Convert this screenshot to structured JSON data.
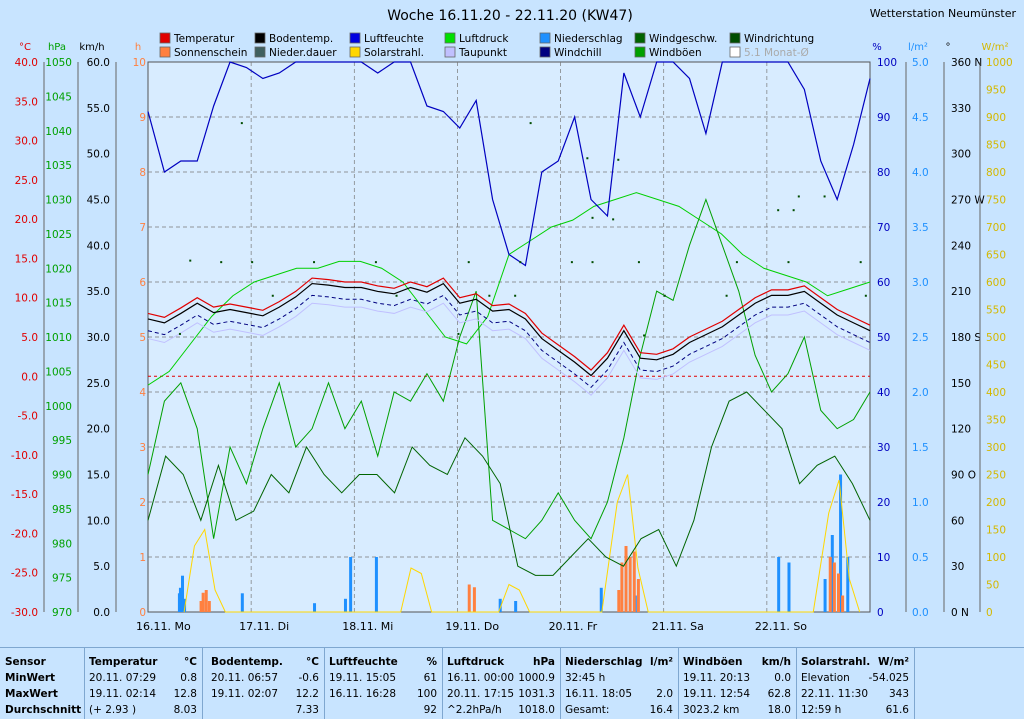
{
  "station": "Wetterstation Neumünster",
  "chart_data": {
    "type": "line",
    "title": "Woche 16.11.20 - 22.11.20 (KW47)",
    "days": [
      "16.11. Mo",
      "17.11. Di",
      "18.11. Mi",
      "19.11. Do",
      "20.11. Fr",
      "21.11. Sa",
      "22.11. So"
    ],
    "legend": [
      {
        "name": "Temperatur",
        "color": "#e00000"
      },
      {
        "name": "Bodentemp.",
        "color": "#000000"
      },
      {
        "name": "Luftfeuchte",
        "color": "#0000e0"
      },
      {
        "name": "Luftdruck",
        "color": "#00e000"
      },
      {
        "name": "Niederschlag",
        "color": "#1e90ff"
      },
      {
        "name": "Windgeschw.",
        "color": "#006400"
      },
      {
        "name": "Windrichtung",
        "color": "#004d00"
      },
      {
        "name": "Sonnenschein",
        "color": "#ff8040"
      },
      {
        "name": "Nieder.dauer",
        "color": "#406060"
      },
      {
        "name": "Solarstrahl.",
        "color": "#ffd700"
      },
      {
        "name": "Taupunkt",
        "color": "#c0c0ff"
      },
      {
        "name": "Windchill",
        "color": "#000080"
      },
      {
        "name": "Windböen",
        "color": "#00a000"
      },
      {
        "name": "5.1 Monat-Ø",
        "color": "#ffffff"
      }
    ],
    "axes": {
      "temp": {
        "unit": "°C",
        "ticks": [
          "40.0",
          "35.0",
          "30.0",
          "25.0",
          "20.0",
          "15.0",
          "10.0",
          "5.0",
          "0.0",
          "-5.0",
          "-10.0",
          "-15.0",
          "-20.0",
          "-25.0",
          "-30.0"
        ],
        "color": "#e00000"
      },
      "pressure": {
        "unit": "hPa",
        "ticks": [
          "1050",
          "1045",
          "1040",
          "1035",
          "1030",
          "1025",
          "1020",
          "1015",
          "1010",
          "1005",
          "1000",
          "995",
          "990",
          "985",
          "980",
          "975",
          "970"
        ],
        "color": "#00a000"
      },
      "wind": {
        "unit": "km/h",
        "ticks": [
          "60.0",
          "55.0",
          "50.0",
          "45.0",
          "40.0",
          "35.0",
          "30.0",
          "25.0",
          "20.0",
          "15.0",
          "10.0",
          "5.0",
          "0.0"
        ],
        "color": "#000000"
      },
      "sun": {
        "unit": "h",
        "ticks": [
          "10",
          "9",
          "8",
          "7",
          "6",
          "5",
          "4",
          "3",
          "2",
          "1",
          "0"
        ],
        "color": "#ff8040"
      },
      "humidity": {
        "unit": "%",
        "ticks": [
          "100",
          "90",
          "80",
          "70",
          "60",
          "50",
          "40",
          "30",
          "20",
          "10",
          "0"
        ],
        "color": "#0000c0"
      },
      "rain": {
        "unit": "l/m²",
        "ticks": [
          "5.0",
          "4.5",
          "4.0",
          "3.5",
          "3.0",
          "2.5",
          "2.0",
          "1.5",
          "1.0",
          "0.5",
          "0.0"
        ],
        "color": "#1e90ff"
      },
      "dir": {
        "unit": "°",
        "ticks": [
          "360 N",
          "330",
          "300",
          "270 W",
          "240",
          "210",
          "180 S",
          "150",
          "120",
          "90 O",
          "60",
          "30",
          "0 N"
        ],
        "color": "#000000"
      },
      "solar": {
        "unit": "W/m²",
        "ticks": [
          "1000",
          "950",
          "900",
          "850",
          "800",
          "750",
          "700",
          "650",
          "600",
          "550",
          "500",
          "450",
          "400",
          "350",
          "300",
          "250",
          "200",
          "150",
          "100",
          "50",
          "0"
        ],
        "color": "#d4b800"
      }
    },
    "series": {
      "temperature": [
        8.0,
        7.5,
        8.7,
        10.0,
        8.8,
        9.2,
        8.8,
        8.4,
        9.5,
        10.8,
        12.5,
        12.3,
        12.0,
        12.0,
        11.5,
        11.2,
        12.0,
        11.4,
        12.5,
        10.0,
        10.5,
        9.0,
        9.2,
        8.0,
        5.5,
        4.0,
        2.5,
        0.8,
        3.0,
        6.5,
        3.0,
        2.8,
        3.5,
        5.0,
        6.0,
        7.0,
        8.5,
        10.0,
        11.0,
        11.0,
        11.5,
        10.0,
        8.5,
        7.5,
        6.5
      ],
      "humidity": [
        91,
        80,
        82,
        82,
        92,
        100,
        99,
        97,
        98,
        100,
        100,
        100,
        100,
        100,
        98,
        100,
        100,
        92,
        91,
        88,
        93,
        75,
        65,
        63,
        80,
        82,
        90,
        75,
        72,
        98,
        90,
        100,
        100,
        97,
        87,
        100,
        100,
        100,
        100,
        100,
        95,
        82,
        75,
        85,
        97
      ],
      "pressure": [
        1003,
        1005,
        1009,
        1013,
        1016,
        1018,
        1019,
        1020,
        1020,
        1021,
        1021,
        1020,
        1018,
        1014,
        1010,
        1009,
        1013,
        1022,
        1024,
        1026,
        1027,
        1029,
        1030,
        1031,
        1030,
        1029,
        1027,
        1025,
        1022,
        1020,
        1019,
        1018,
        1016,
        1017,
        1018
      ],
      "windspeed": [
        10,
        17,
        15,
        10,
        16,
        10,
        11,
        15,
        13,
        18,
        15,
        13,
        15,
        15,
        13,
        18,
        16,
        15,
        19,
        17,
        14,
        5,
        4,
        4,
        6,
        8,
        6,
        5,
        8,
        9,
        5,
        10,
        18,
        23,
        24,
        22,
        20,
        14,
        16,
        17,
        14,
        10
      ],
      "windgust": [
        15,
        23,
        25,
        20,
        8,
        18,
        14,
        20,
        25,
        18,
        20,
        25,
        20,
        23,
        17,
        24,
        23,
        26,
        23,
        30,
        35,
        10,
        9,
        8,
        10,
        13,
        10,
        8,
        12,
        19,
        28,
        35,
        34,
        40,
        45,
        40,
        35,
        28,
        24,
        26,
        30,
        22,
        20,
        21,
        24
      ],
      "rain_bars": [
        [
          0.32,
          0.33
        ],
        [
          0.29,
          0.17
        ],
        [
          0.3,
          0.22
        ],
        [
          0.32,
          0.22
        ],
        [
          0.34,
          0.12
        ],
        [
          0.9,
          0.17
        ],
        [
          1.6,
          0.08
        ],
        [
          1.95,
          0.5
        ],
        [
          1.9,
          0.12
        ],
        [
          2.2,
          0.5
        ],
        [
          3.4,
          0.12
        ],
        [
          3.55,
          0.1
        ],
        [
          4.38,
          0.22
        ],
        [
          4.71,
          0.15
        ],
        [
          6.1,
          0.5
        ],
        [
          6.2,
          0.45
        ],
        [
          6.55,
          0.3
        ],
        [
          6.62,
          0.7
        ],
        [
          6.7,
          1.25
        ],
        [
          6.77,
          0.5
        ]
      ],
      "sun_bars": [
        [
          0.5,
          0.2
        ],
        [
          0.52,
          0.35
        ],
        [
          0.55,
          0.4
        ],
        [
          0.58,
          0.2
        ],
        [
          3.1,
          0.5
        ],
        [
          3.15,
          0.45
        ],
        [
          4.55,
          0.4
        ],
        [
          4.58,
          0.9
        ],
        [
          4.62,
          1.2
        ],
        [
          4.66,
          1.0
        ],
        [
          4.7,
          1.1
        ],
        [
          4.74,
          0.6
        ],
        [
          6.6,
          1.0
        ],
        [
          6.64,
          0.9
        ],
        [
          6.68,
          0.7
        ],
        [
          6.72,
          0.3
        ]
      ],
      "solar": [
        [
          0.35,
          0
        ],
        [
          0.45,
          120
        ],
        [
          0.55,
          150
        ],
        [
          0.65,
          40
        ],
        [
          0.75,
          0
        ],
        [
          2.45,
          0
        ],
        [
          2.55,
          80
        ],
        [
          2.65,
          70
        ],
        [
          2.75,
          0
        ],
        [
          3.4,
          0
        ],
        [
          3.5,
          50
        ],
        [
          3.6,
          40
        ],
        [
          3.7,
          0
        ],
        [
          4.4,
          0
        ],
        [
          4.55,
          200
        ],
        [
          4.65,
          250
        ],
        [
          4.75,
          80
        ],
        [
          4.85,
          0
        ],
        [
          6.45,
          0
        ],
        [
          6.6,
          180
        ],
        [
          6.7,
          240
        ],
        [
          6.8,
          60
        ],
        [
          6.9,
          0
        ]
      ],
      "winddir_dots": [
        [
          0.4,
          230
        ],
        [
          0.7,
          229
        ],
        [
          1.0,
          229
        ],
        [
          1.6,
          229
        ],
        [
          2.2,
          229
        ],
        [
          3.1,
          229
        ],
        [
          3.6,
          229
        ],
        [
          4.1,
          229
        ],
        [
          4.3,
          229
        ],
        [
          4.75,
          229
        ],
        [
          5.7,
          229
        ],
        [
          6.2,
          229
        ],
        [
          6.9,
          229
        ],
        [
          1.2,
          207
        ],
        [
          2.4,
          207
        ],
        [
          3.3,
          207
        ],
        [
          3.55,
          207
        ],
        [
          5.0,
          207
        ],
        [
          5.6,
          207
        ],
        [
          6.95,
          207
        ],
        [
          0.3,
          182
        ],
        [
          3.0,
          182
        ],
        [
          4.8,
          181
        ],
        [
          0.9,
          320
        ],
        [
          3.7,
          320
        ],
        [
          4.25,
          297
        ],
        [
          4.55,
          296
        ],
        [
          6.3,
          272
        ],
        [
          6.55,
          272
        ],
        [
          6.1,
          263
        ],
        [
          6.25,
          263
        ],
        [
          4.3,
          258
        ],
        [
          4.5,
          257
        ]
      ]
    }
  },
  "table": {
    "sensor": {
      "title": "Sensor",
      "rows": [
        "MinWert",
        "MaxWert",
        "Durchschnitt"
      ]
    },
    "temperatur": {
      "title": "Temperatur",
      "unit": "°C",
      "rows": [
        [
          "20.11.  07:29",
          "0.8"
        ],
        [
          "19.11.  02:14",
          "12.8"
        ],
        [
          "(+ 2.93 )",
          "8.03"
        ]
      ]
    },
    "bodentemp": {
      "title": "Bodentemp.",
      "unit": "°C",
      "rows": [
        [
          "20.11.  06:57",
          "-0.6"
        ],
        [
          "19.11.  02:07",
          "12.2"
        ],
        [
          "",
          "7.33"
        ]
      ]
    },
    "luftfeuchte": {
      "title": "Luftfeuchte",
      "unit": "%",
      "rows": [
        [
          "19.11.  15:05",
          "61"
        ],
        [
          "16.11.  16:28",
          "100"
        ],
        [
          "",
          "92"
        ]
      ]
    },
    "luftdruck": {
      "title": "Luftdruck",
      "unit": "hPa",
      "rows": [
        [
          "16.11.  00:00",
          "1000.9"
        ],
        [
          "20.11.  17:15",
          "1031.3"
        ],
        [
          "^2.2hPa/h",
          "1018.0"
        ]
      ]
    },
    "niederschlag": {
      "title": "Niederschlag",
      "unit": "l/m²",
      "rows": [
        [
          "32:45 h",
          ""
        ],
        [
          "16.11.  18:05",
          "2.0"
        ],
        [
          "Gesamt:",
          "16.4"
        ]
      ]
    },
    "windboeen": {
      "title": "Windböen",
      "unit": "km/h",
      "rows": [
        [
          "19.11.  20:13",
          "0.0"
        ],
        [
          "19.11.  12:54",
          "62.8"
        ],
        [
          "3023.2 km",
          "18.0"
        ]
      ]
    },
    "solarstrahl": {
      "title": "Solarstrahl.",
      "unit": "W/m²",
      "rows": [
        [
          "Elevation",
          "-54.025"
        ],
        [
          "22.11.  11:30",
          "343"
        ],
        [
          "12:59 h",
          "61.6"
        ]
      ]
    }
  }
}
